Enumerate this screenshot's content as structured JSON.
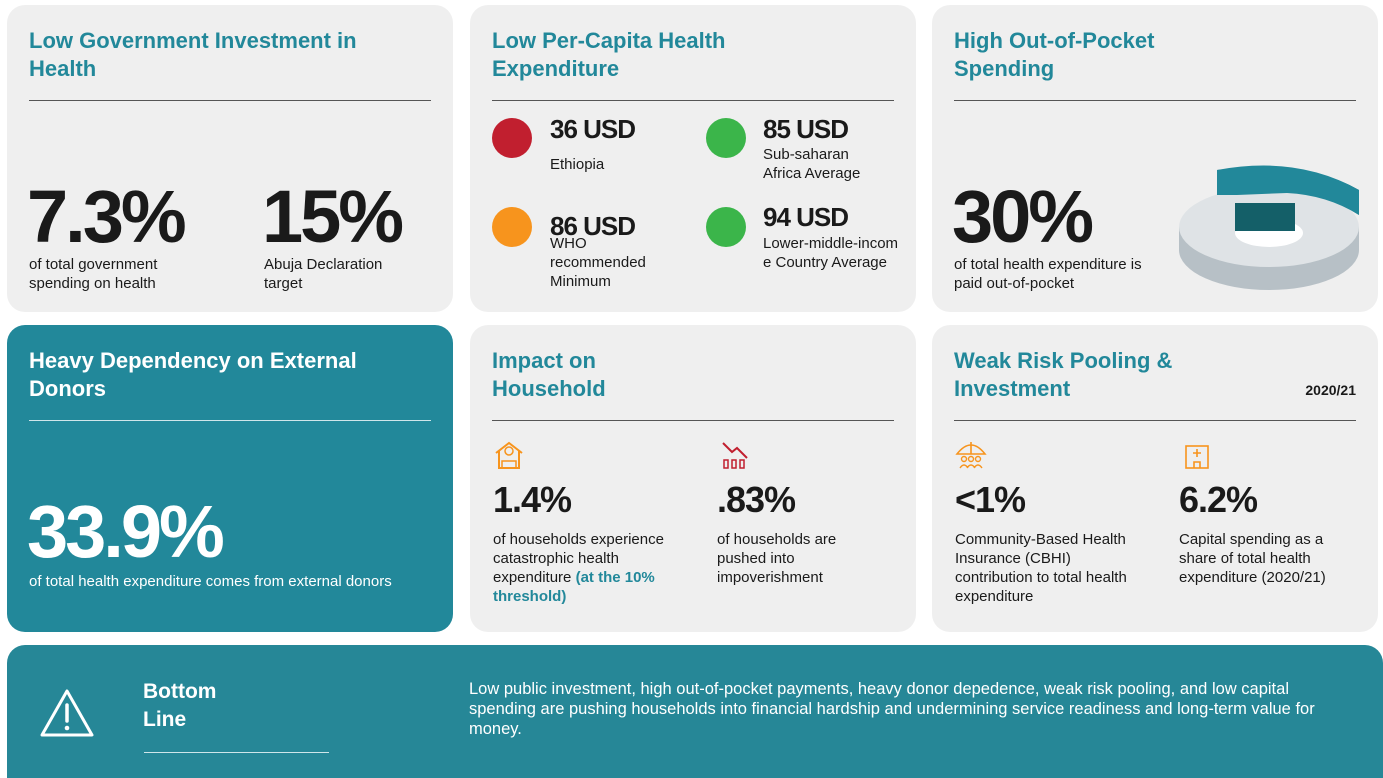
{
  "cards": [
    {
      "title": "Low Government Investment in Health",
      "stats": [
        {
          "value": "7.3%",
          "label": "of total government spending on health"
        },
        {
          "value": "15%",
          "label": "Abuja Declaration target"
        }
      ]
    },
    {
      "title": "Low Per-Capita Health Expenditure",
      "items": [
        {
          "value": "36 USD",
          "label": "Ethiopia"
        },
        {
          "value": "85 USD",
          "label": "Sub-saharan Africa Average"
        },
        {
          "value": "86 USD",
          "label": "WHO recommended Minimum"
        },
        {
          "value": "94 USD",
          "label": "Lower-middle-income Country Average"
        }
      ]
    },
    {
      "title": "High Out-of-Pocket Spending",
      "stats": [
        {
          "value": "30%",
          "label": "of total health expenditure is paid out-of-pocket"
        }
      ]
    },
    {
      "title": "Heavy Dependency on External Donors",
      "stats": [
        {
          "value": "33.9%",
          "label": "of total health expenditure comes from external donors"
        }
      ]
    },
    {
      "title": "Impact on Household",
      "stats": [
        {
          "value": "1.4%",
          "label": "of households experience catastrophic health expenditure",
          "note": "(at the 10% threshold)"
        },
        {
          "value": ".83%",
          "label": "of households are pushed into impoverishment"
        }
      ]
    },
    {
      "title": "Weak Risk Pooling & Investment",
      "year": "2020/21",
      "stats": [
        {
          "value": "<1%",
          "label": "Community-Based Health Insurance (CBHI) contribution to total health expenditure"
        },
        {
          "value": "6.2%",
          "label": "Capital spending as a share of total health expenditure (2020/21)"
        }
      ]
    }
  ],
  "bottom_line": {
    "title": "Bottom Line",
    "text": "Low public investment, high out-of-pocket payments, heavy donor depedence, weak risk pooling, and low capital spending are pushing households into financial hardship and undermining service readiness and long-term value for money."
  }
}
